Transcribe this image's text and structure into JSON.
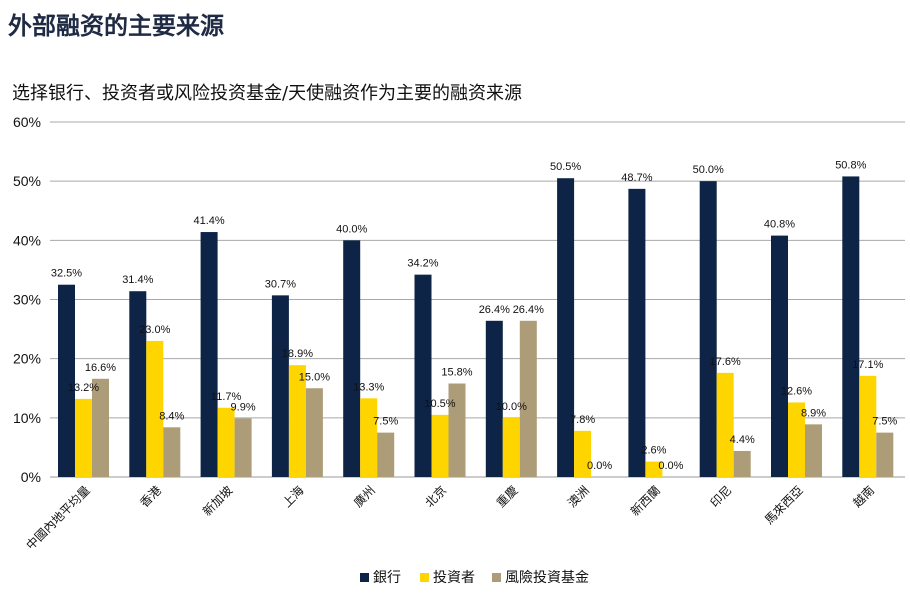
{
  "page": {
    "title": "外部融资的主要来源"
  },
  "chart_data": {
    "type": "bar",
    "title": "选择银行、投资者或风险投资基金/天使融资作为主要的融资来源",
    "xlabel": "",
    "ylabel": "",
    "ylim": [
      0,
      60
    ],
    "yticks": [
      "0%",
      "10%",
      "20%",
      "30%",
      "40%",
      "50%",
      "60%"
    ],
    "grid": true,
    "legend_position": "bottom",
    "categories": [
      "中國內地平均量",
      "香港",
      "新加坡",
      "上海",
      "廣州",
      "北京",
      "重慶",
      "澳洲",
      "新西蘭",
      "印尼",
      "馬來西亞",
      "越南"
    ],
    "series": [
      {
        "name": "銀行",
        "color": "#0d2447",
        "values": [
          32.5,
          31.4,
          41.4,
          30.7,
          40.0,
          34.2,
          26.4,
          50.5,
          48.7,
          50.0,
          40.8,
          50.8
        ],
        "labels": [
          "32.5%",
          "31.4%",
          "41.4%",
          "30.7%",
          "40.0%",
          "34.2%",
          "26.4%",
          "50.5%",
          "48.7%",
          "50.0%",
          "40.8%",
          "50.8%"
        ]
      },
      {
        "name": "投資者",
        "color": "#ffd500",
        "values": [
          13.2,
          23.0,
          11.7,
          18.9,
          13.3,
          10.5,
          10.0,
          7.8,
          2.6,
          17.6,
          12.6,
          17.1
        ],
        "labels": [
          "13.2%",
          "23.0%",
          "11.7%",
          "18.9%",
          "13.3%",
          "10.5%",
          "10.0%",
          "7.8%",
          "2.6%",
          "17.6%",
          "12.6%",
          "17.1%"
        ]
      },
      {
        "name": "風險投資基金",
        "color": "#ad9c78",
        "values": [
          16.6,
          8.4,
          9.9,
          15.0,
          7.5,
          15.8,
          26.4,
          0.0,
          0.0,
          4.4,
          8.9,
          7.5
        ],
        "labels": [
          "16.6%",
          "8.4%",
          "9.9%",
          "15.0%",
          "7.5%",
          "15.8%",
          "26.4%",
          "0.0%",
          "0.0%",
          "4.4%",
          "8.9%",
          "7.5%"
        ]
      }
    ]
  }
}
